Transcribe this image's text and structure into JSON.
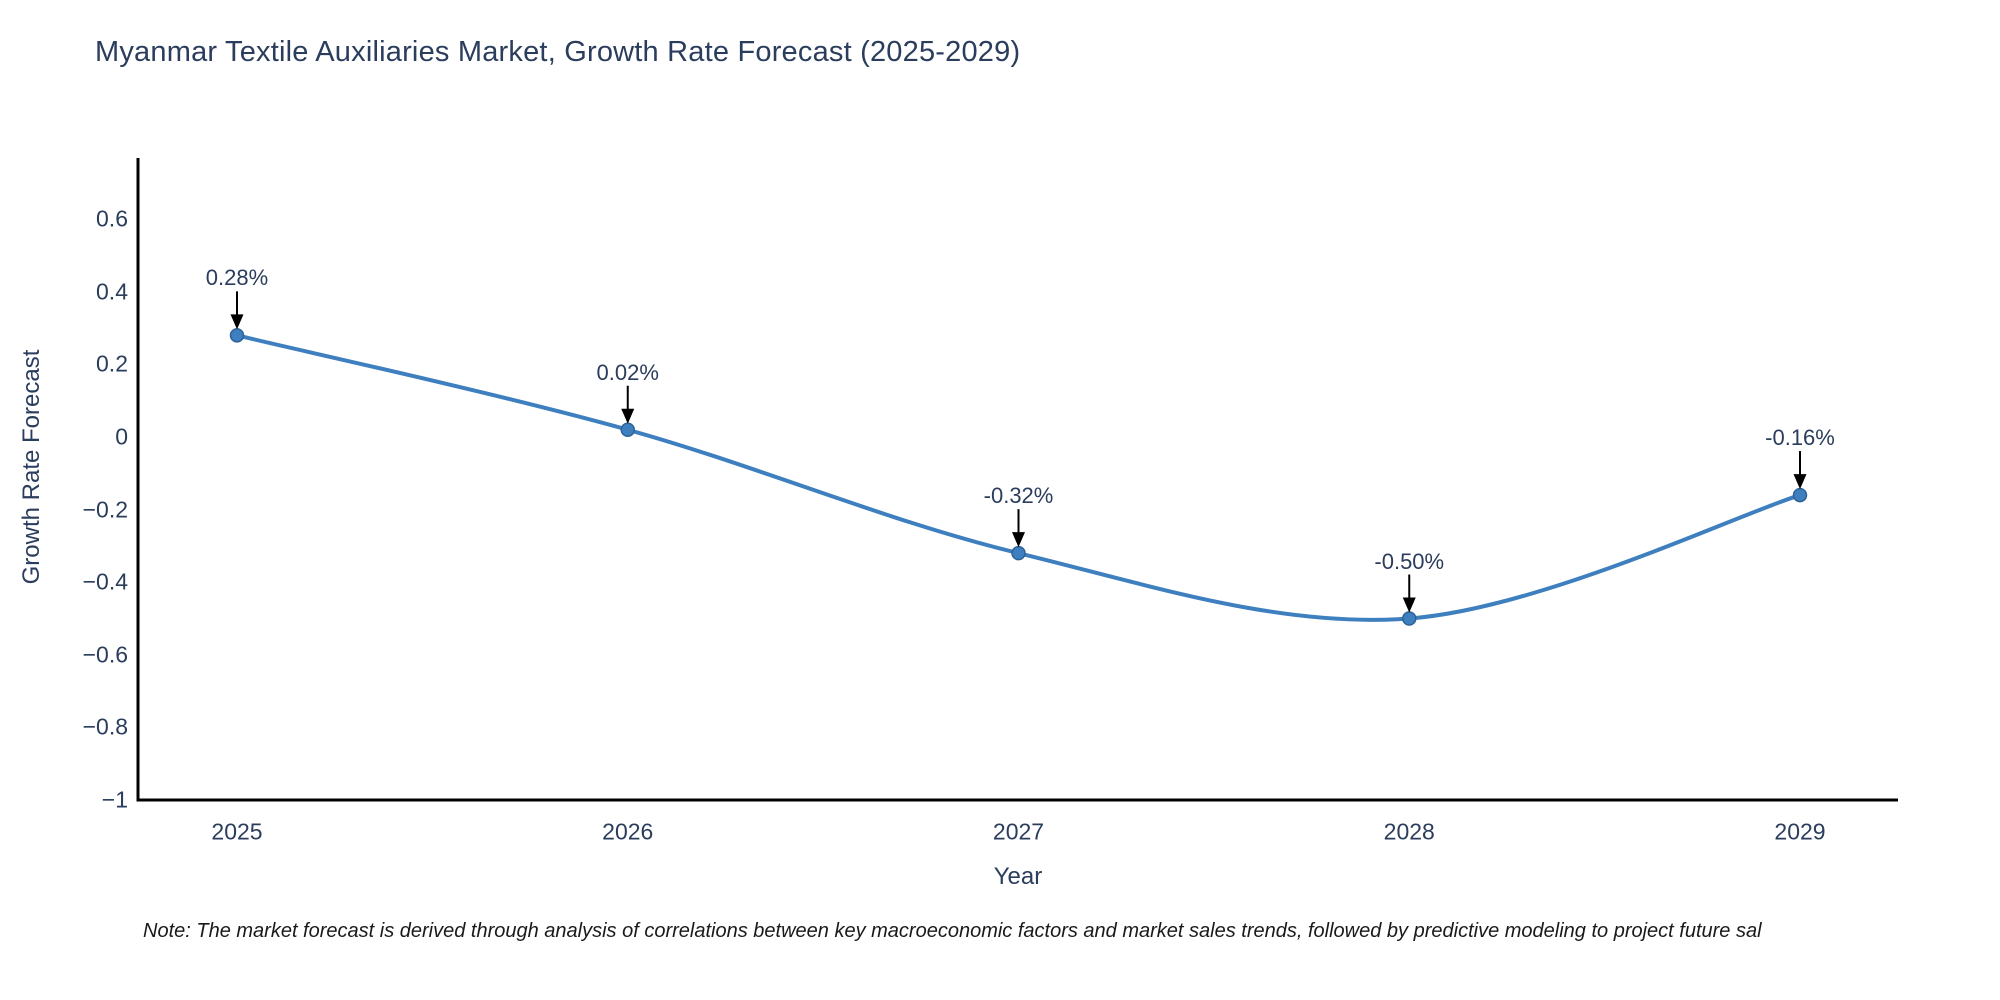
{
  "chart_data": {
    "type": "line",
    "title": "Myanmar Textile Auxiliaries Market, Growth Rate Forecast (2025-2029)",
    "xlabel": "Year",
    "ylabel": "Growth Rate Forecast",
    "categories": [
      "2025",
      "2026",
      "2027",
      "2028",
      "2029"
    ],
    "values": [
      0.28,
      0.02,
      -0.32,
      -0.5,
      -0.16
    ],
    "point_labels": [
      "0.28%",
      "0.02%",
      "-0.32%",
      "-0.50%",
      "-0.16%"
    ],
    "ytick_values": [
      0.6,
      0.4,
      0.2,
      0,
      -0.2,
      -0.4,
      -0.6,
      -0.8,
      -1
    ],
    "ytick_labels": [
      "0.6",
      "0.4",
      "0.2",
      "0",
      "−0.2",
      "−0.4",
      "−0.6",
      "−0.8",
      "−1"
    ],
    "ylim": [
      -1.03,
      0.77
    ],
    "grid": false,
    "legend": "none",
    "line_shape": "spline",
    "line_color": "#3e7fbf",
    "marker_color": "#3e7fbf",
    "marker_edge_color": "#2e6296",
    "axis_color": "#000000",
    "annotation_arrow_color": "#000000",
    "text_color": "#2b3d5c"
  },
  "footnote": "Note: The market forecast is derived through analysis of correlations between key macroeconomic factors and market sales trends, followed by predictive modeling to project future sal"
}
